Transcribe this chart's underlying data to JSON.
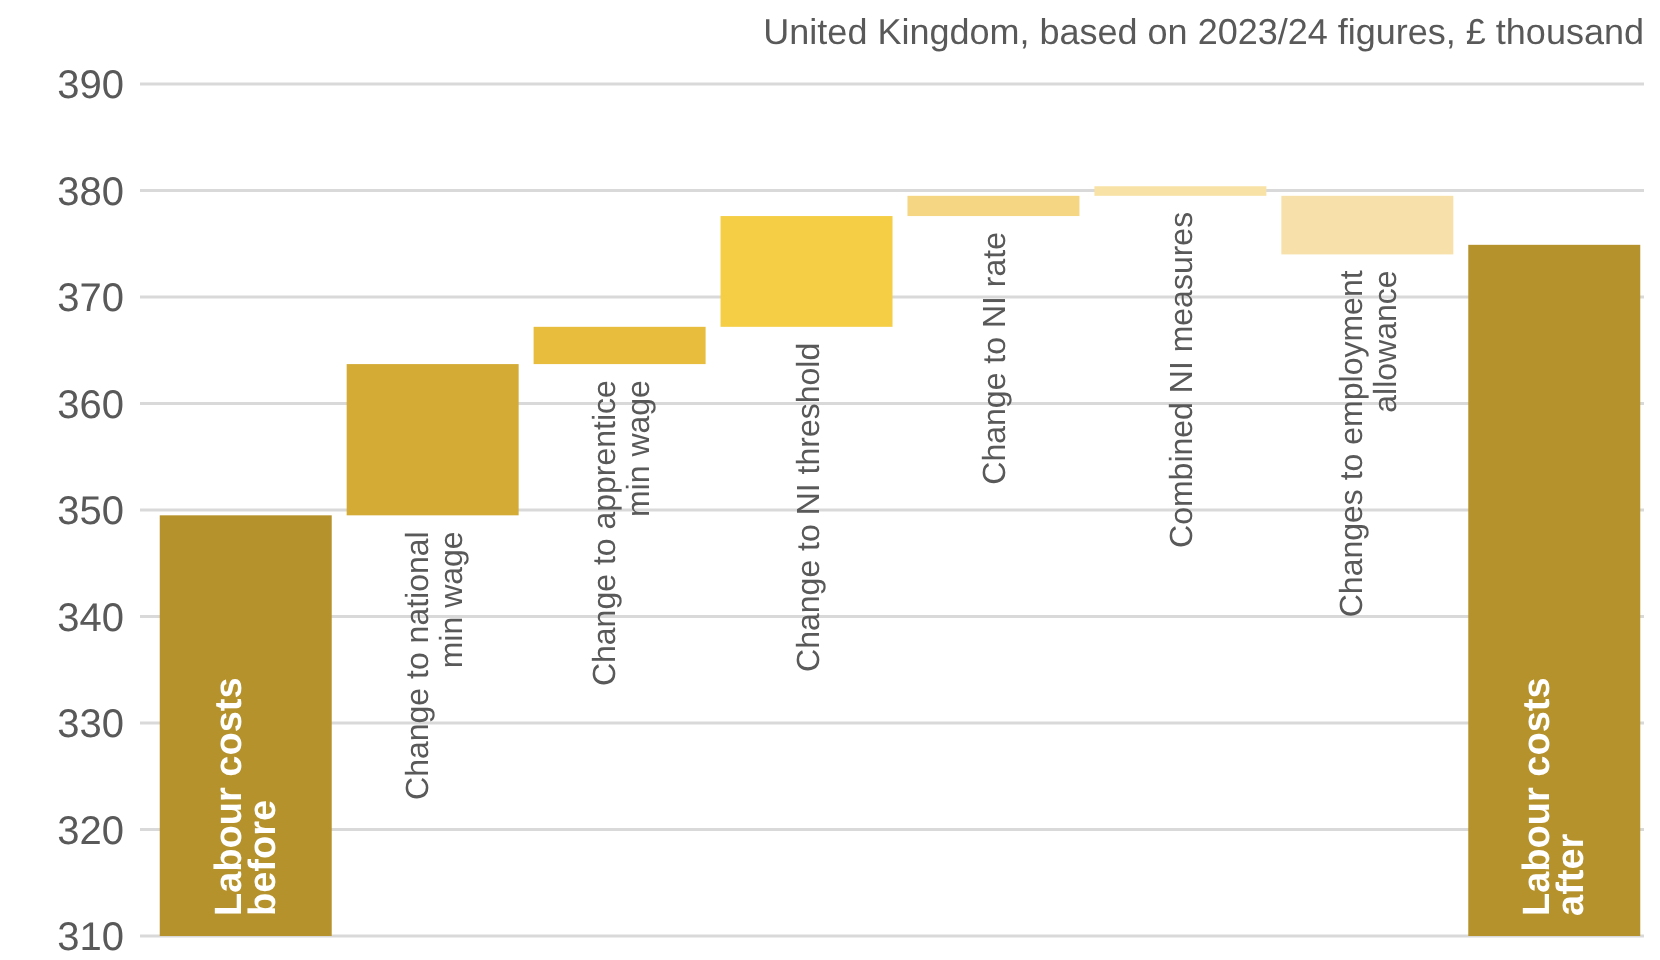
{
  "chart_data": {
    "type": "bar",
    "subtitle": "United Kingdom, based on 2023/24 figures, £ thousand",
    "categories": [
      "Labour costs\nbefore",
      "Change to national\nmin wage",
      "Change to apprentice\nmin wage",
      "Change to NI threshold",
      "Change to NI rate",
      "Combined NI measures",
      "Changes to employment\nallowance",
      "Labour costs\nafter"
    ],
    "values": [
      39.5,
      14.2,
      3.5,
      10.4,
      1.9,
      0.9,
      -5.5,
      64.9
    ],
    "base": [
      310,
      349.5,
      363.7,
      367.2,
      377.6,
      379.5,
      379.5,
      310
    ],
    "colors": [
      "#b5922c",
      "#d4ac35",
      "#e8bc3c",
      "#f5ce45",
      "#f5d682",
      "#f8e2a6",
      "#f8e0aa",
      "#b5922c"
    ],
    "ylim": [
      310,
      390
    ],
    "yticks": [
      310,
      320,
      330,
      340,
      350,
      360,
      370,
      380,
      390
    ],
    "grid": "y"
  }
}
